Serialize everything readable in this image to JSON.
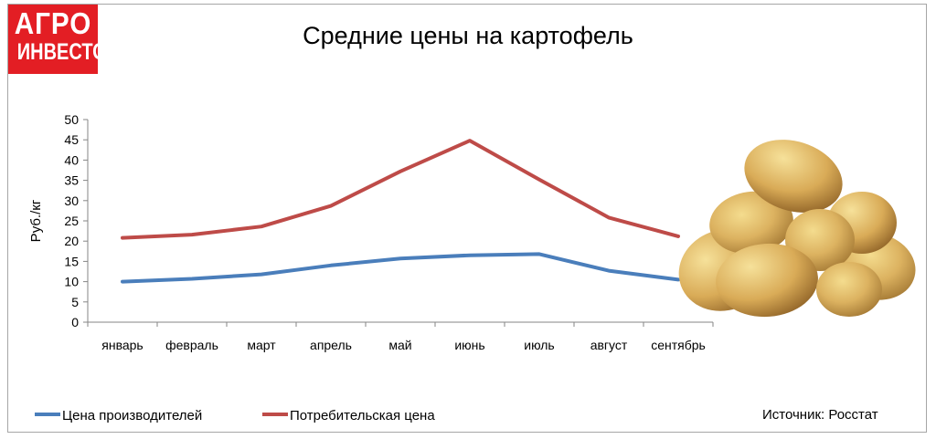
{
  "logo": {
    "line1": "АГРО",
    "line2": "ИНВЕСТОР"
  },
  "title": "Средние цены на картофель",
  "source": "Источник: Росстат",
  "chart_data": {
    "type": "line",
    "title": "Средние цены на картофель",
    "ylabel": "Руб./кг",
    "xlabel": "",
    "ylim": [
      0,
      50
    ],
    "yticks": [
      0,
      5,
      10,
      15,
      20,
      25,
      30,
      35,
      40,
      45,
      50
    ],
    "categories": [
      "январь",
      "февраль",
      "март",
      "апрель",
      "май",
      "июнь",
      "июль",
      "август",
      "сентябрь"
    ],
    "series": [
      {
        "name": "Цена производителей",
        "color": "#4a7ebb",
        "values": [
          10.0,
          10.7,
          11.8,
          14.0,
          15.7,
          16.5,
          16.8,
          12.7,
          10.5
        ]
      },
      {
        "name": "Потребительская цена",
        "color": "#be4b48",
        "values": [
          20.8,
          21.6,
          23.6,
          28.7,
          37.2,
          44.8,
          35.2,
          25.8,
          21.2
        ]
      }
    ],
    "grid": false,
    "legend_position": "bottom"
  },
  "image": {
    "icon": "potatoes-image"
  }
}
